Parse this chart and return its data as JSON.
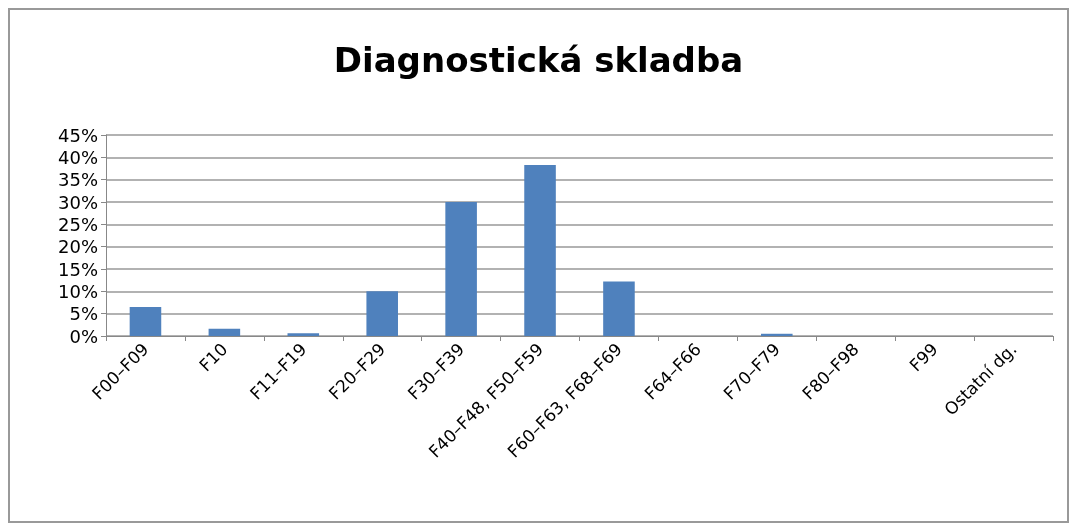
{
  "chart_data": {
    "type": "bar",
    "title": "Diagnostická skladba",
    "categories": [
      "F00–F09",
      "F10",
      "F11–F19",
      "F20–F29",
      "F30–F39",
      "F40–F48, F50–F59",
      "F60–F63, F68–F69",
      "F64–F66",
      "F70–F79",
      "F80–F98",
      "F99",
      "Ostatní dg."
    ],
    "values": [
      6.5,
      1.6,
      0.6,
      10,
      30,
      38.3,
      12.2,
      0,
      0.5,
      0,
      0,
      0
    ],
    "color": "#4f81bd",
    "ylim": [
      0,
      45
    ],
    "yticks": [
      {
        "value": 0,
        "label": "0%"
      },
      {
        "value": 5,
        "label": "5%"
      },
      {
        "value": 10,
        "label": "10%"
      },
      {
        "value": 15,
        "label": "15%"
      },
      {
        "value": 20,
        "label": "20%"
      },
      {
        "value": 25,
        "label": "25%"
      },
      {
        "value": 30,
        "label": "30%"
      },
      {
        "value": 35,
        "label": "35%"
      },
      {
        "value": 40,
        "label": "40%"
      },
      {
        "value": 45,
        "label": "45%"
      }
    ],
    "grid": "y"
  }
}
